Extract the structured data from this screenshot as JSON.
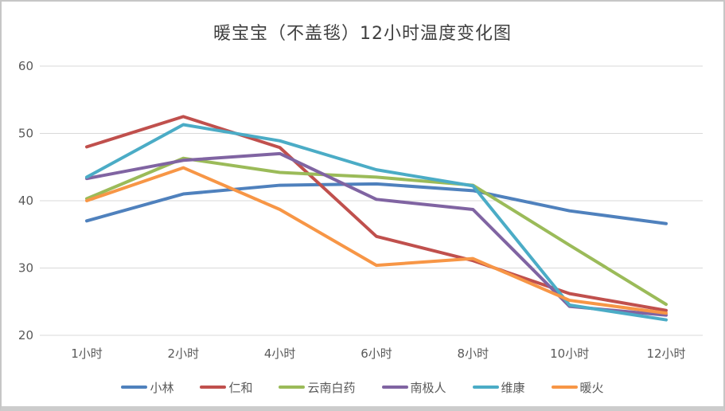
{
  "chart_data": {
    "type": "line",
    "title": "暖宝宝（不盖毯）12小时温度变化图",
    "categories": [
      "1小时",
      "2小时",
      "4小时",
      "6小时",
      "8小时",
      "10小时",
      "12小时"
    ],
    "series": [
      {
        "name": "小林",
        "color": "#4F81BD",
        "values": [
          37,
          41,
          42.3,
          42.5,
          41.5,
          38.5,
          36.6
        ]
      },
      {
        "name": "仁和",
        "color": "#C0504D",
        "values": [
          48,
          52.5,
          47.9,
          34.7,
          31.1,
          26.2,
          23.7
        ]
      },
      {
        "name": "云南白药",
        "color": "#9BBB59",
        "values": [
          40.3,
          46.3,
          44.2,
          43.5,
          42.3,
          33.4,
          24.6
        ]
      },
      {
        "name": "南极人",
        "color": "#8064A2",
        "values": [
          43.3,
          46,
          47,
          40.2,
          38.7,
          24.3,
          23
        ]
      },
      {
        "name": "维康",
        "color": "#4BACC6",
        "values": [
          43.5,
          51.3,
          48.9,
          44.6,
          42.2,
          24.5,
          22.3
        ]
      },
      {
        "name": "暖火",
        "color": "#F79646",
        "values": [
          40,
          44.9,
          38.7,
          30.4,
          31.4,
          25.2,
          23.3
        ]
      }
    ],
    "xlabel": "",
    "ylabel": "",
    "ylim": [
      20,
      60
    ],
    "yticks": [
      20,
      30,
      40,
      50,
      60
    ],
    "grid": "horizontal-only",
    "legend_position": "bottom",
    "gridline_color": "#D9D9D9",
    "axis_text_color": "#595959",
    "title_color": "#3F3F3F"
  }
}
